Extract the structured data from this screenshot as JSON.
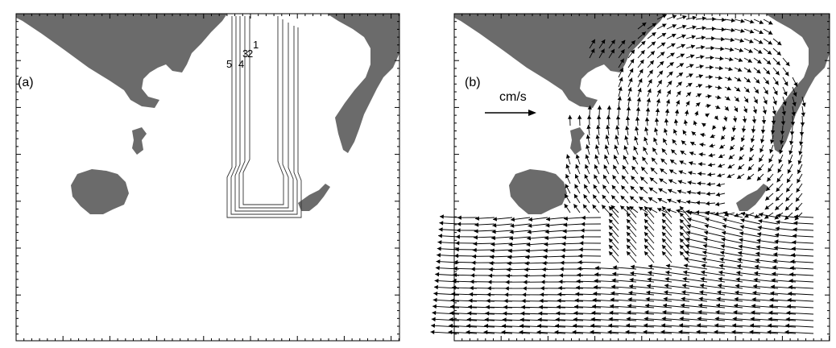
{
  "panels": [
    {
      "id": "a",
      "label": "(a)"
    },
    {
      "id": "b",
      "label": "(b)"
    }
  ],
  "contour_labels": [
    "1",
    "2",
    "3",
    "4",
    "5"
  ],
  "scale_arrow_unit": "cm/s",
  "colors": {
    "land": "#6b6b6b",
    "lines": "#000000",
    "background": "#ffffff"
  }
}
